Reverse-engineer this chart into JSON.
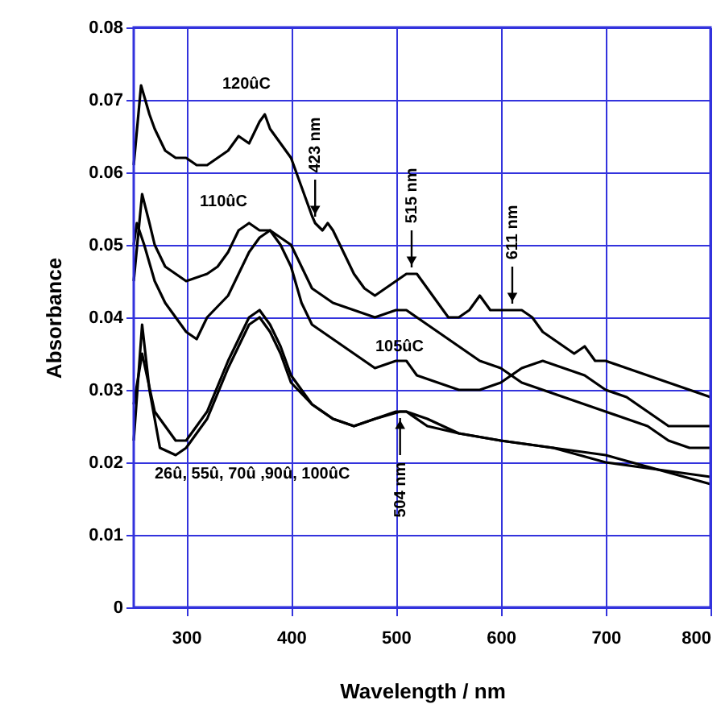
{
  "chart_data": {
    "type": "line",
    "xlabel": "Wavelength / nm",
    "ylabel": "Absorbance",
    "xlim": [
      250,
      800
    ],
    "ylim": [
      0,
      0.08
    ],
    "xticks": [
      300,
      400,
      500,
      600,
      700,
      800
    ],
    "yticks": [
      0,
      0.01,
      0.02,
      0.03,
      0.04,
      0.05,
      0.06,
      0.07,
      0.08
    ],
    "grid": true,
    "marker": "none",
    "line_style": "solid",
    "series": [
      {
        "color": "#000000",
        "x": [
          250,
          257,
          265,
          270,
          280,
          290,
          300,
          310,
          320,
          330,
          340,
          350,
          360,
          370,
          375,
          380,
          390,
          400,
          410,
          420,
          423,
          430,
          435,
          440,
          450,
          460,
          470,
          480,
          490,
          500,
          510,
          515,
          520,
          530,
          540,
          550,
          560,
          570,
          580,
          590,
          600,
          611,
          620,
          630,
          640,
          650,
          660,
          670,
          680,
          690,
          700,
          720,
          740,
          760,
          780,
          800
        ],
        "values": [
          0.061,
          0.072,
          0.068,
          0.066,
          0.063,
          0.062,
          0.062,
          0.061,
          0.061,
          0.062,
          0.063,
          0.065,
          0.064,
          0.067,
          0.068,
          0.066,
          0.064,
          0.062,
          0.058,
          0.054,
          0.053,
          0.052,
          0.053,
          0.052,
          0.049,
          0.046,
          0.044,
          0.043,
          0.044,
          0.045,
          0.046,
          0.046,
          0.046,
          0.044,
          0.042,
          0.04,
          0.04,
          0.041,
          0.043,
          0.041,
          0.041,
          0.041,
          0.041,
          0.04,
          0.038,
          0.037,
          0.036,
          0.035,
          0.036,
          0.034,
          0.034,
          0.033,
          0.032,
          0.031,
          0.03,
          0.029
        ]
      },
      {
        "color": "#000000",
        "x": [
          250,
          258,
          265,
          270,
          280,
          290,
          300,
          320,
          330,
          340,
          350,
          360,
          370,
          380,
          390,
          400,
          410,
          420,
          440,
          460,
          480,
          500,
          510,
          520,
          540,
          560,
          580,
          600,
          620,
          640,
          660,
          680,
          700,
          720,
          740,
          760,
          780,
          800
        ],
        "values": [
          0.045,
          0.057,
          0.053,
          0.05,
          0.047,
          0.046,
          0.045,
          0.046,
          0.047,
          0.049,
          0.052,
          0.053,
          0.052,
          0.052,
          0.051,
          0.05,
          0.047,
          0.044,
          0.042,
          0.041,
          0.04,
          0.041,
          0.041,
          0.04,
          0.038,
          0.036,
          0.034,
          0.033,
          0.031,
          0.03,
          0.029,
          0.028,
          0.027,
          0.026,
          0.025,
          0.023,
          0.022,
          0.022
        ]
      },
      {
        "color": "#000000",
        "x": [
          250,
          253,
          260,
          270,
          280,
          290,
          300,
          310,
          320,
          340,
          350,
          360,
          370,
          380,
          390,
          400,
          410,
          420,
          440,
          460,
          480,
          500,
          510,
          520,
          540,
          560,
          580,
          600,
          620,
          640,
          660,
          680,
          700,
          720,
          740,
          760,
          780,
          800
        ],
        "values": [
          0.05,
          0.053,
          0.05,
          0.045,
          0.042,
          0.04,
          0.038,
          0.037,
          0.04,
          0.043,
          0.046,
          0.049,
          0.051,
          0.052,
          0.05,
          0.047,
          0.042,
          0.039,
          0.037,
          0.035,
          0.033,
          0.034,
          0.034,
          0.032,
          0.031,
          0.03,
          0.03,
          0.031,
          0.033,
          0.034,
          0.033,
          0.032,
          0.03,
          0.029,
          0.027,
          0.025,
          0.025,
          0.025
        ]
      },
      {
        "color": "#000000",
        "x": [
          250,
          258,
          265,
          275,
          290,
          300,
          320,
          340,
          360,
          370,
          380,
          390,
          400,
          420,
          440,
          460,
          480,
          504,
          510,
          530,
          560,
          600,
          650,
          700,
          750,
          800
        ],
        "values": [
          0.023,
          0.039,
          0.03,
          0.022,
          0.021,
          0.022,
          0.026,
          0.033,
          0.039,
          0.04,
          0.038,
          0.035,
          0.031,
          0.028,
          0.026,
          0.025,
          0.026,
          0.027,
          0.027,
          0.025,
          0.024,
          0.023,
          0.022,
          0.02,
          0.019,
          0.017
        ]
      },
      {
        "color": "#000000",
        "x": [
          250,
          258,
          270,
          290,
          300,
          320,
          340,
          360,
          370,
          380,
          390,
          400,
          420,
          440,
          460,
          480,
          500,
          510,
          530,
          560,
          600,
          650,
          700,
          750,
          800
        ],
        "values": [
          0.028,
          0.035,
          0.027,
          0.023,
          0.023,
          0.027,
          0.034,
          0.04,
          0.041,
          0.039,
          0.036,
          0.032,
          0.028,
          0.026,
          0.025,
          0.026,
          0.027,
          0.027,
          0.026,
          0.024,
          0.023,
          0.022,
          0.021,
          0.019,
          0.018
        ]
      }
    ],
    "annotations": [
      "120ûC",
      "110ûC",
      "105ûC",
      "26û, 55û, 70û ,90û, 100ûC",
      {
        "text": "423 nm",
        "x": 423,
        "y": 0.053
      },
      {
        "text": "515 nm",
        "x": 515,
        "y": 0.046
      },
      {
        "text": "611 nm",
        "x": 611,
        "y": 0.041
      },
      {
        "text": "504 nm",
        "x": 504,
        "y": 0.027
      }
    ]
  }
}
